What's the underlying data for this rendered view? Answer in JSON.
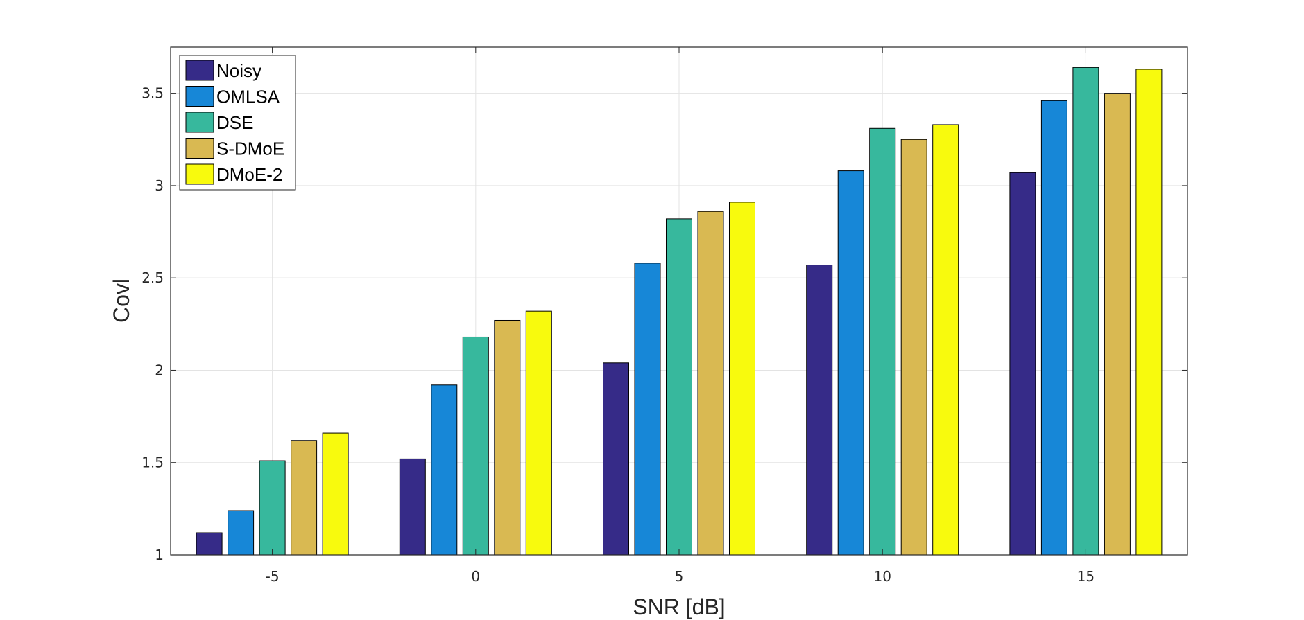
{
  "chart_data": {
    "type": "bar",
    "title": "",
    "xlabel": "SNR [dB]",
    "ylabel": "Covl",
    "categories": [
      "-5",
      "0",
      "5",
      "10",
      "15"
    ],
    "ylim": [
      1,
      3.75
    ],
    "yticks": [
      "1",
      "1.5",
      "2",
      "2.5",
      "3",
      "3.5"
    ],
    "grid": true,
    "legend_position": "top-left",
    "series": [
      {
        "name": "Noisy",
        "color": "#362B88",
        "values": [
          1.12,
          1.52,
          2.04,
          2.57,
          3.07
        ]
      },
      {
        "name": "OMLSA",
        "color": "#1787D7",
        "values": [
          1.24,
          1.92,
          2.58,
          3.08,
          3.46
        ]
      },
      {
        "name": "DSE",
        "color": "#37B89D",
        "values": [
          1.51,
          2.18,
          2.82,
          3.31,
          3.64
        ]
      },
      {
        "name": "S-DMoE",
        "color": "#D9B952",
        "values": [
          1.62,
          2.27,
          2.86,
          3.25,
          3.5
        ]
      },
      {
        "name": "DMoE-2",
        "color": "#F8FA0D",
        "values": [
          1.66,
          2.32,
          2.91,
          3.33,
          3.63
        ]
      }
    ]
  }
}
